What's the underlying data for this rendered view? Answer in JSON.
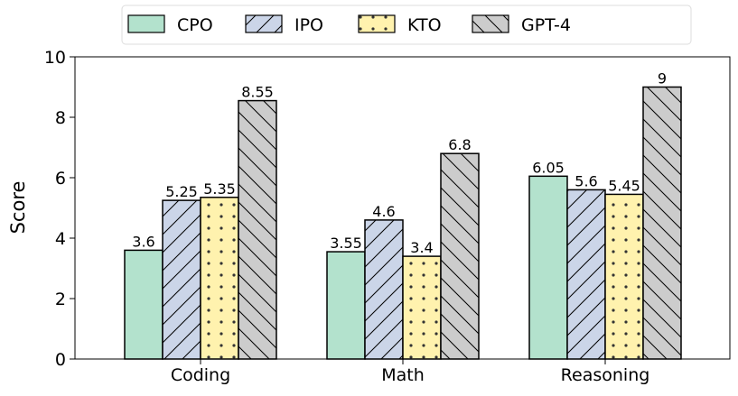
{
  "chart_data": {
    "type": "bar",
    "categories": [
      "Coding",
      "Math",
      "Reasoning"
    ],
    "ylabel": "Score",
    "ylim": [
      0,
      10
    ],
    "yticks": [
      0,
      2,
      4,
      6,
      8,
      10
    ],
    "legend_position": "top-center",
    "grid": false,
    "series": [
      {
        "name": "CPO",
        "values": [
          3.6,
          3.55,
          6.05
        ],
        "color": "#b3e2cd",
        "pattern": "none"
      },
      {
        "name": "IPO",
        "values": [
          5.25,
          4.6,
          5.6
        ],
        "color": "#cbd5e8",
        "pattern": "forward-diagonal"
      },
      {
        "name": "KTO",
        "values": [
          5.35,
          3.4,
          5.45
        ],
        "color": "#fff2ae",
        "pattern": "dots"
      },
      {
        "name": "GPT-4",
        "values": [
          8.55,
          6.8,
          9
        ],
        "color": "#cccccc",
        "pattern": "back-diagonal"
      }
    ]
  }
}
